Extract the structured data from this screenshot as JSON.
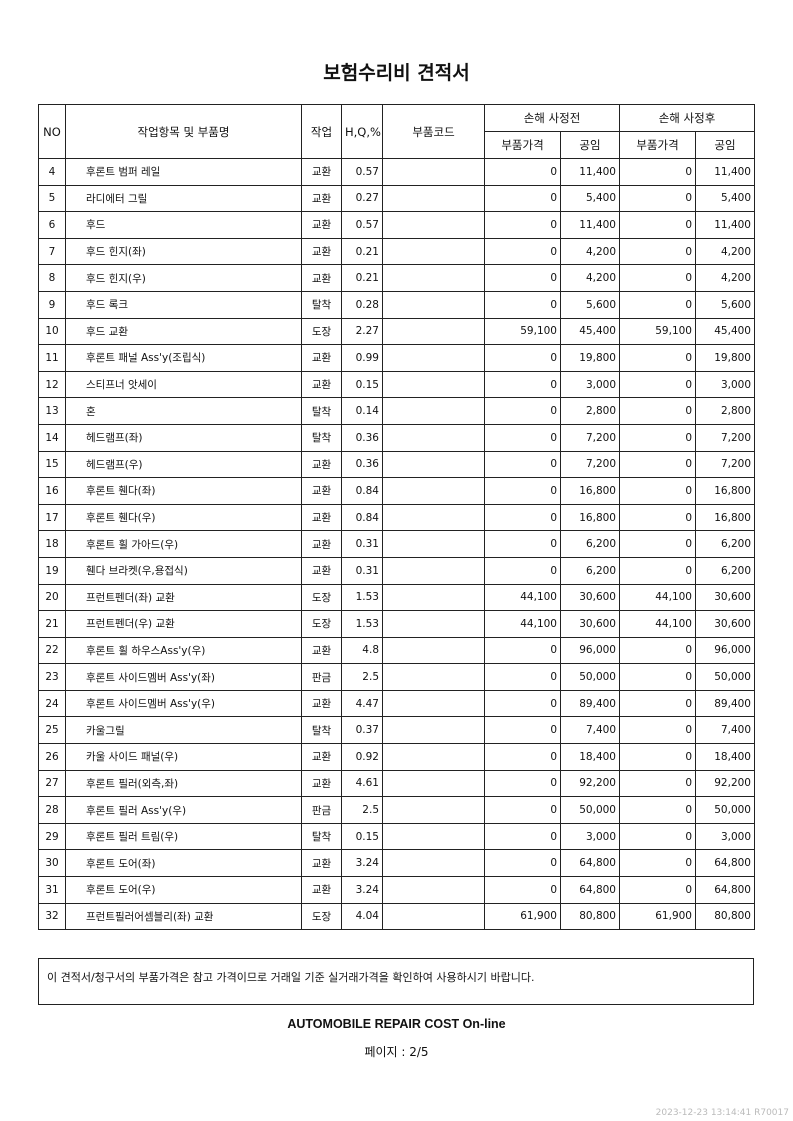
{
  "title": "보험수리비 견적서",
  "headers": {
    "no": "NO",
    "name": "작업항목 및 부품명",
    "work": "작업",
    "hq": "H,Q,%",
    "code": "부품코드",
    "before": "손해 사정전",
    "after": "손해 사정후",
    "part_price": "부품가격",
    "labor": "공임"
  },
  "rows": [
    [
      "4",
      "후론트 범퍼 레일",
      "교환",
      "0.57",
      "",
      "0",
      "11,400",
      "0",
      "11,400"
    ],
    [
      "5",
      "라디에터 그릴",
      "교환",
      "0.27",
      "",
      "0",
      "5,400",
      "0",
      "5,400"
    ],
    [
      "6",
      "후드",
      "교환",
      "0.57",
      "",
      "0",
      "11,400",
      "0",
      "11,400"
    ],
    [
      "7",
      "후드 힌지(좌)",
      "교환",
      "0.21",
      "",
      "0",
      "4,200",
      "0",
      "4,200"
    ],
    [
      "8",
      "후드 힌지(우)",
      "교환",
      "0.21",
      "",
      "0",
      "4,200",
      "0",
      "4,200"
    ],
    [
      "9",
      "후드 록크",
      "탈착",
      "0.28",
      "",
      "0",
      "5,600",
      "0",
      "5,600"
    ],
    [
      "10",
      "후드  교환",
      "도장",
      "2.27",
      "",
      "59,100",
      "45,400",
      "59,100",
      "45,400"
    ],
    [
      "11",
      "후론트 패널 Ass'y(조립식)",
      "교환",
      "0.99",
      "",
      "0",
      "19,800",
      "0",
      "19,800"
    ],
    [
      "12",
      "스티프너 앗세이",
      "교환",
      "0.15",
      "",
      "0",
      "3,000",
      "0",
      "3,000"
    ],
    [
      "13",
      "혼",
      "탈착",
      "0.14",
      "",
      "0",
      "2,800",
      "0",
      "2,800"
    ],
    [
      "14",
      "헤드램프(좌)",
      "탈착",
      "0.36",
      "",
      "0",
      "7,200",
      "0",
      "7,200"
    ],
    [
      "15",
      "헤드램프(우)",
      "교환",
      "0.36",
      "",
      "0",
      "7,200",
      "0",
      "7,200"
    ],
    [
      "16",
      "후론트 휀다(좌)",
      "교환",
      "0.84",
      "",
      "0",
      "16,800",
      "0",
      "16,800"
    ],
    [
      "17",
      "후론트 휀다(우)",
      "교환",
      "0.84",
      "",
      "0",
      "16,800",
      "0",
      "16,800"
    ],
    [
      "18",
      "후론트 휠 가아드(우)",
      "교환",
      "0.31",
      "",
      "0",
      "6,200",
      "0",
      "6,200"
    ],
    [
      "19",
      "휀다 브라켓(우,용접식)",
      "교환",
      "0.31",
      "",
      "0",
      "6,200",
      "0",
      "6,200"
    ],
    [
      "20",
      "프런트펜더(좌) 교환",
      "도장",
      "1.53",
      "",
      "44,100",
      "30,600",
      "44,100",
      "30,600"
    ],
    [
      "21",
      "프런트펜더(우) 교환",
      "도장",
      "1.53",
      "",
      "44,100",
      "30,600",
      "44,100",
      "30,600"
    ],
    [
      "22",
      "후론트 휠 하우스Ass'y(우)",
      "교환",
      "4.8",
      "",
      "0",
      "96,000",
      "0",
      "96,000"
    ],
    [
      "23",
      "후론트 사이드멤버 Ass'y(좌)",
      "판금",
      "2.5",
      "",
      "0",
      "50,000",
      "0",
      "50,000"
    ],
    [
      "24",
      "후론트 사이드멤버 Ass'y(우)",
      "교환",
      "4.47",
      "",
      "0",
      "89,400",
      "0",
      "89,400"
    ],
    [
      "25",
      "카울그릴",
      "탈착",
      "0.37",
      "",
      "0",
      "7,400",
      "0",
      "7,400"
    ],
    [
      "26",
      "카울 사이드 패널(우)",
      "교환",
      "0.92",
      "",
      "0",
      "18,400",
      "0",
      "18,400"
    ],
    [
      "27",
      "후론트 필러(외측,좌)",
      "교환",
      "4.61",
      "",
      "0",
      "92,200",
      "0",
      "92,200"
    ],
    [
      "28",
      "후론트 필러 Ass'y(우)",
      "판금",
      "2.5",
      "",
      "0",
      "50,000",
      "0",
      "50,000"
    ],
    [
      "29",
      "후론트 필러 트림(우)",
      "탈착",
      "0.15",
      "",
      "0",
      "3,000",
      "0",
      "3,000"
    ],
    [
      "30",
      "후론트 도어(좌)",
      "교환",
      "3.24",
      "",
      "0",
      "64,800",
      "0",
      "64,800"
    ],
    [
      "31",
      "후론트 도어(우)",
      "교환",
      "3.24",
      "",
      "0",
      "64,800",
      "0",
      "64,800"
    ],
    [
      "32",
      "프런트필러어셈블리(좌) 교환",
      "도장",
      "4.04",
      "",
      "61,900",
      "80,800",
      "61,900",
      "80,800"
    ]
  ],
  "note": "이 견적서/청구서의 부품가격은 참고 가격이므로 거래일 기준 실거래가격을 확인하여 사용하시기 바랍니다.",
  "footer": "AUTOMOBILE REPAIR COST On-line",
  "page": "페이지 : 2/5",
  "stamp": "2023-12-23  13:14:41 R70017"
}
